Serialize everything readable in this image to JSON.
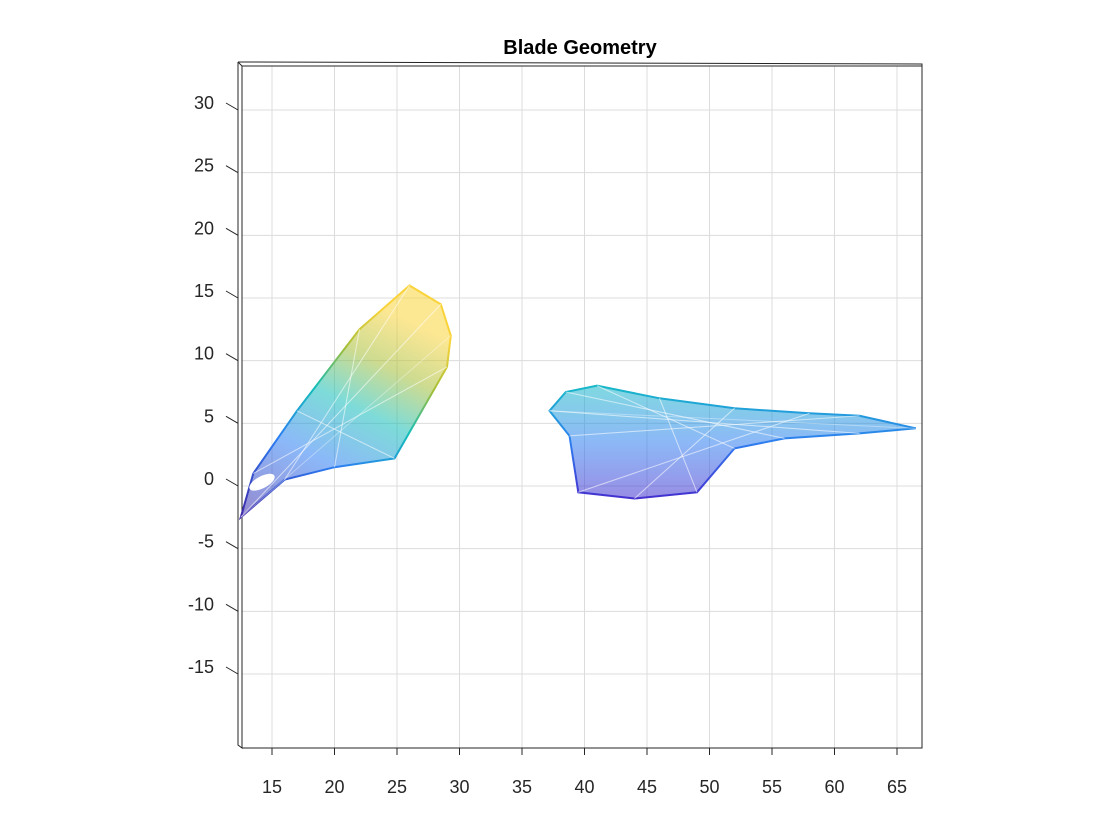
{
  "chart_data": {
    "type": "surface",
    "title": "Blade Geometry",
    "xlabel": "",
    "ylabel": "",
    "xlim": [
      12.5,
      67
    ],
    "ylim": [
      -20,
      35
    ],
    "xticks": [
      15,
      20,
      25,
      30,
      35,
      40,
      45,
      50,
      55,
      60,
      65
    ],
    "yticks": [
      30,
      25,
      20,
      15,
      10,
      5,
      0,
      -5,
      -10,
      -15
    ],
    "grid": true,
    "colormap": "parula",
    "surfaces": [
      {
        "name": "",
        "description": "fan-shaped blade",
        "outline": [
          [
            12.5,
            -2.5
          ],
          [
            16,
            0.5
          ],
          [
            20,
            1.5
          ],
          [
            24.8,
            2.2
          ],
          [
            29,
            9.5
          ],
          [
            29.3,
            12
          ],
          [
            28.5,
            14.5
          ],
          [
            26,
            16
          ],
          [
            22,
            12.5
          ],
          [
            17,
            6
          ],
          [
            13.5,
            1
          ],
          [
            12.5,
            -2.5
          ]
        ],
        "z_color_range": [
          0.05,
          0.95
        ]
      },
      {
        "name": "",
        "description": "elongated blade",
        "outline": [
          [
            37.2,
            6
          ],
          [
            38.5,
            7.5
          ],
          [
            41,
            8
          ],
          [
            46,
            7
          ],
          [
            52,
            6.2
          ],
          [
            58,
            5.8
          ],
          [
            62,
            5.6
          ],
          [
            66.5,
            4.6
          ],
          [
            62,
            4.2
          ],
          [
            56,
            3.8
          ],
          [
            52,
            3
          ],
          [
            49,
            -0.5
          ],
          [
            44,
            -1
          ],
          [
            39.5,
            -0.5
          ],
          [
            38.8,
            4
          ],
          [
            37.2,
            6
          ]
        ],
        "z_color_range": [
          0.08,
          0.55
        ]
      }
    ]
  },
  "colors": {
    "grid": "#dcdcdc",
    "axis": "#262626",
    "parula_low": "#3e26a8",
    "parula_mid": "#13beb9",
    "parula_high": "#f9fb15"
  }
}
